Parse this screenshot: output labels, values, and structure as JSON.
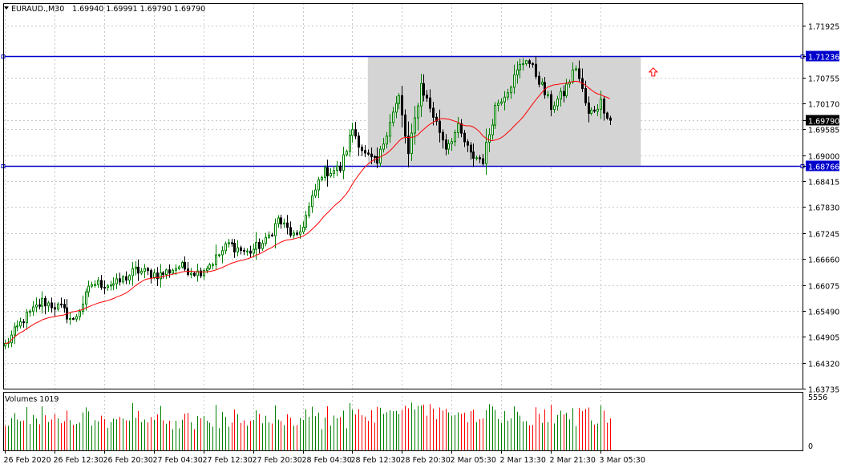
{
  "header": {
    "symbol": "EURAUD.,M30",
    "ohlc": "1.69940 1.69991 1.69790 1.69790",
    "menu_icon": "triangle-down-icon"
  },
  "volumes_label": "Volumes 1019",
  "colors": {
    "bull": "#008000",
    "bear": "#000000",
    "ma": "#ff0000",
    "hline": "#0000cc",
    "rect": "#d4d4d4",
    "volume_up": "#008000",
    "volume_down": "#ff0000",
    "grid": "#c8c8c8",
    "arrow": "#ff0000"
  },
  "chart_data": {
    "type": "candlestick",
    "symbol": "EURAUD.",
    "timeframe": "M30",
    "price_ticks": [
      "1.71925",
      "1.71236",
      "1.70755",
      "1.70170",
      "1.69790",
      "1.69585",
      "1.69000",
      "1.68766",
      "1.68415",
      "1.67830",
      "1.67245",
      "1.66660",
      "1.66075",
      "1.65490",
      "1.64905",
      "1.64320",
      "1.63735"
    ],
    "time_ticks": [
      "26 Feb 2020",
      "26 Feb 12:30",
      "26 Feb 20:30",
      "27 Feb 04:30",
      "27 Feb 12:30",
      "27 Feb 20:30",
      "28 Feb 04:30",
      "28 Feb 12:30",
      "28 Feb 20:30",
      "2 Mar 05:30",
      "2 Mar 13:30",
      "2 Mar 21:30",
      "3 Mar 05:30"
    ],
    "y_range": [
      1.63735,
      1.7243
    ],
    "volume_ticks": [
      "5556",
      "0"
    ],
    "volume_max": 5556,
    "hlines": [
      {
        "price": 1.71236,
        "label": "1.71236"
      },
      {
        "price": 1.68766,
        "label": "1.68766"
      }
    ],
    "current_price": {
      "price": 1.6979,
      "label": "1.69790"
    },
    "rectangle": {
      "start_bar": 117,
      "end_bar": 205,
      "price_top": 1.71236,
      "price_bottom": 1.68766
    },
    "arrow": {
      "bar": 209,
      "price": 1.7086,
      "direction": "up"
    },
    "ma_period": 20,
    "anchors": [
      [
        0,
        1.6472
      ],
      [
        6,
        1.653
      ],
      [
        12,
        1.657
      ],
      [
        18,
        1.6555
      ],
      [
        22,
        1.6525
      ],
      [
        28,
        1.661
      ],
      [
        36,
        1.661
      ],
      [
        42,
        1.664
      ],
      [
        50,
        1.663
      ],
      [
        56,
        1.665
      ],
      [
        62,
        1.6635
      ],
      [
        67,
        1.666
      ],
      [
        72,
        1.67
      ],
      [
        78,
        1.668
      ],
      [
        84,
        1.6705
      ],
      [
        88,
        1.6755
      ],
      [
        94,
        1.671
      ],
      [
        98,
        1.678
      ],
      [
        102,
        1.686
      ],
      [
        108,
        1.687
      ],
      [
        112,
        1.696
      ],
      [
        116,
        1.69
      ],
      [
        120,
        1.688
      ],
      [
        124,
        1.698
      ],
      [
        127,
        1.703
      ],
      [
        130,
        1.69
      ],
      [
        134,
        1.706
      ],
      [
        138,
        1.699
      ],
      [
        142,
        1.692
      ],
      [
        146,
        1.696
      ],
      [
        150,
        1.69
      ],
      [
        154,
        1.689
      ],
      [
        158,
        1.701
      ],
      [
        162,
        1.705
      ],
      [
        166,
        1.71
      ],
      [
        168,
        1.712
      ],
      [
        172,
        1.707
      ],
      [
        176,
        1.701
      ],
      [
        180,
        1.704
      ],
      [
        184,
        1.71
      ],
      [
        188,
        1.699
      ],
      [
        192,
        1.702
      ],
      [
        195,
        1.6979
      ]
    ]
  }
}
